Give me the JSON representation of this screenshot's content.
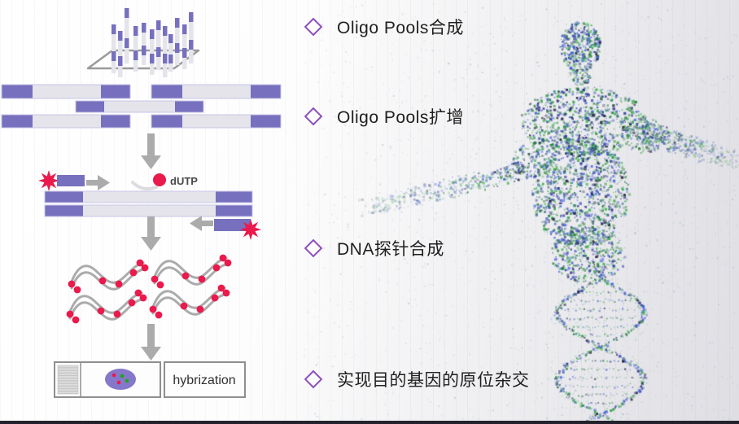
{
  "slide": {
    "bullets": [
      "Oligo Pools合成",
      "Oligo Pools扩增",
      "DNA探针合成",
      "实现目的基因的原位杂交"
    ],
    "diagram": {
      "dutp_label": "dUTP",
      "hybridization_label": "hybrization"
    },
    "colors": {
      "oligo_purple": "#7670BE",
      "oligo_gray": "#E4E4EA",
      "arrow_gray": "#ABABAB",
      "marker_red": "#EA1A4C",
      "probe_green": "#18A818",
      "diamond_purple": "#8E4FBE",
      "text_dark": "#1F1F1F",
      "particle_green": "#2F9E44",
      "particle_blue": "#3B5BDB"
    }
  }
}
